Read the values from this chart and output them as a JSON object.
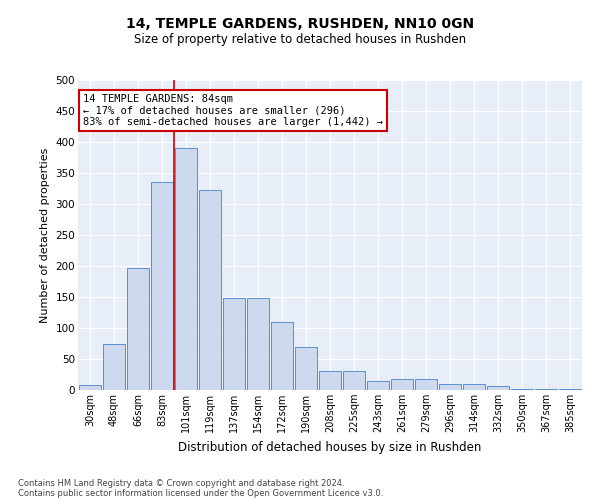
{
  "title": "14, TEMPLE GARDENS, RUSHDEN, NN10 0GN",
  "subtitle": "Size of property relative to detached houses in Rushden",
  "xlabel": "Distribution of detached houses by size in Rushden",
  "ylabel": "Number of detached properties",
  "bar_labels": [
    "30sqm",
    "48sqm",
    "66sqm",
    "83sqm",
    "101sqm",
    "119sqm",
    "137sqm",
    "154sqm",
    "172sqm",
    "190sqm",
    "208sqm",
    "225sqm",
    "243sqm",
    "261sqm",
    "279sqm",
    "296sqm",
    "314sqm",
    "332sqm",
    "350sqm",
    "367sqm",
    "385sqm"
  ],
  "bar_values": [
    8,
    75,
    197,
    335,
    390,
    322,
    148,
    148,
    110,
    70,
    30,
    30,
    15,
    18,
    18,
    10,
    10,
    6,
    2,
    1,
    1
  ],
  "bar_color": "#ccd9ee",
  "bar_edge_color": "#5b8fd4",
  "red_line_index": 3.5,
  "property_label": "14 TEMPLE GARDENS: 84sqm",
  "annotation_line1": "← 17% of detached houses are smaller (296)",
  "annotation_line2": "83% of semi-detached houses are larger (1,442) →",
  "annotation_box_color": "#ffffff",
  "annotation_box_edge": "#cc0000",
  "ylim": [
    0,
    500
  ],
  "footer1": "Contains HM Land Registry data © Crown copyright and database right 2024.",
  "footer2": "Contains public sector information licensed under the Open Government Licence v3.0."
}
